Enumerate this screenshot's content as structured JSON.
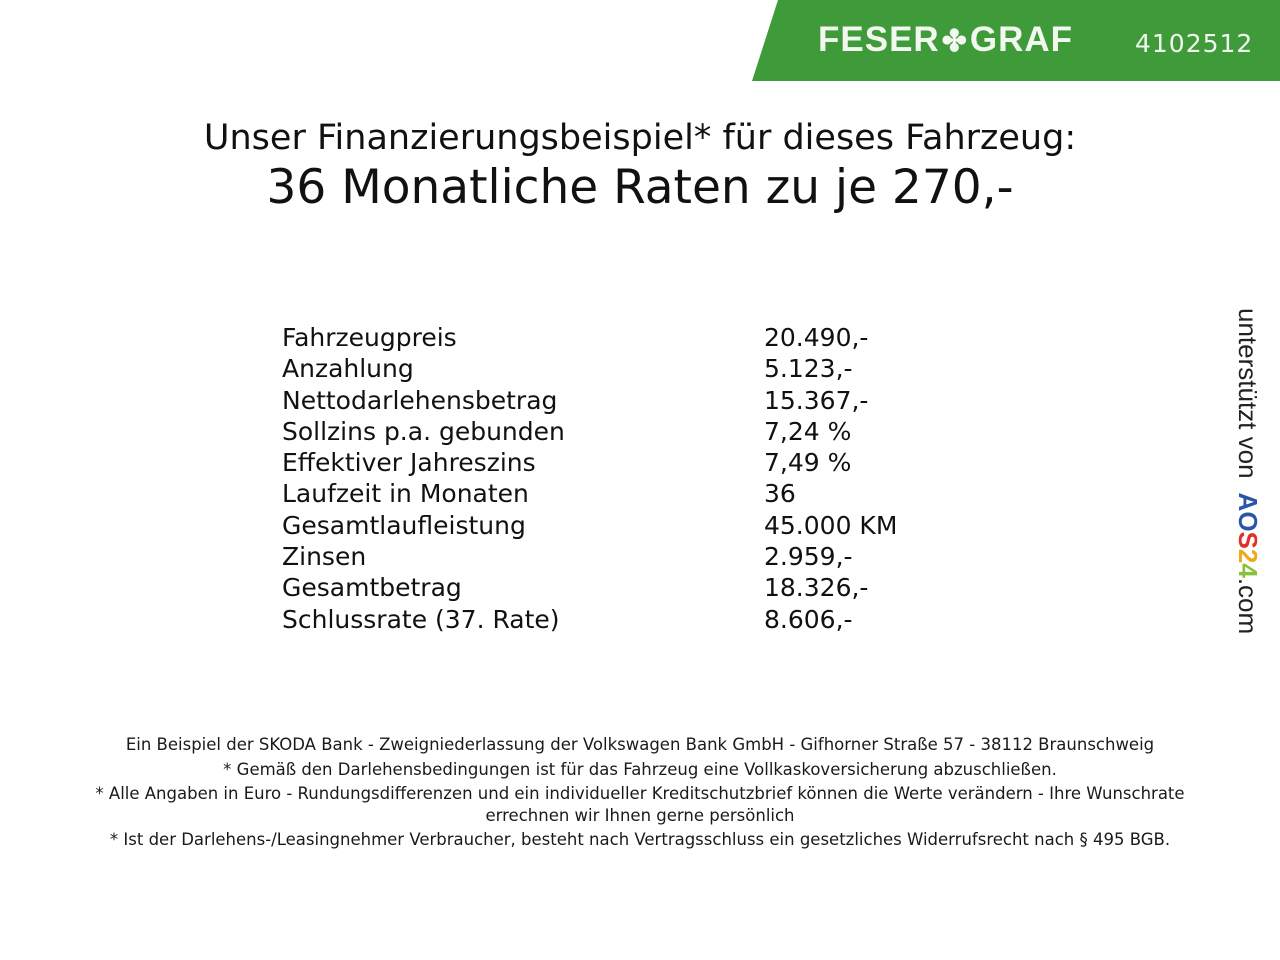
{
  "header": {
    "brand": "FESER",
    "brand2": "GRAF",
    "dealer_code": "4102512",
    "accent": "#3f9b39"
  },
  "title": {
    "line1": "Unser Finanzierungsbeispiel* für dieses Fahrzeug:",
    "line2": "36 Monatliche Raten zu je 270,-"
  },
  "rows": [
    {
      "label": "Fahrzeugpreis",
      "value": "20.490,-"
    },
    {
      "label": "Anzahlung",
      "value": "5.123,-"
    },
    {
      "label": "Nettodarlehensbetrag",
      "value": "15.367,-"
    },
    {
      "label": "Sollzins p.a. gebunden",
      "value": "7,24 %"
    },
    {
      "label": "Effektiver Jahreszins",
      "value": "7,49 %"
    },
    {
      "label": "Laufzeit in Monaten",
      "value": "36"
    },
    {
      "label": "Gesamtlaufleistung",
      "value": "45.000 KM"
    },
    {
      "label": "Zinsen",
      "value": "2.959,-"
    },
    {
      "label": "Gesamtbetrag",
      "value": "18.326,-"
    },
    {
      "label": "Schlussrate (37. Rate)",
      "value": "8.606,-"
    }
  ],
  "side": {
    "text": "unterstützt von",
    "logo": "AOS24",
    "suffix": ".com"
  },
  "footer": [
    "Ein Beispiel der SKODA Bank - Zweigniederlassung der Volkswagen Bank GmbH - Gifhorner Straße 57 - 38112 Braunschweig",
    "* Gemäß den Darlehensbedingungen ist für das Fahrzeug eine Vollkaskoversicherung abzuschließen.",
    "* Alle Angaben in Euro - Rundungsdifferenzen und ein individueller Kreditschutzbrief können die Werte verändern - Ihre Wunschrate errechnen wir Ihnen gerne persönlich",
    "* Ist der Darlehens-/Leasingnehmer Verbraucher, besteht nach Vertragsschluss ein gesetzliches Widerrufsrecht nach § 495 BGB."
  ]
}
